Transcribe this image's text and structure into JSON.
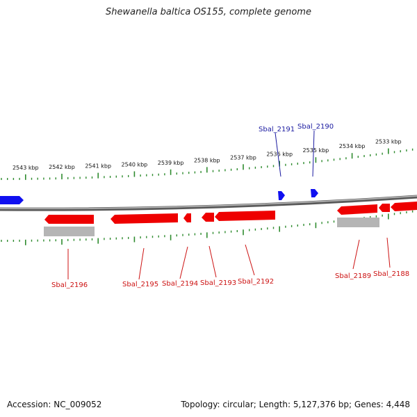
{
  "title": "Shewanella baltica OS155, complete genome",
  "accession_text": "Accession: NC_009052",
  "summary_text": "Topology: circular; Length: 5,127,376 bp; Genes: 4,448",
  "colors": {
    "backbone": "#7a7a7a",
    "tick": "#2e8b2e",
    "forward_gene": "#0000ff",
    "reverse_gene": "#ff0000",
    "gray_feature": "#b8b8b8",
    "forward_label": "#1a1aa0",
    "reverse_label": "#cc1111"
  },
  "scale_labels": [
    {
      "kbp": 2543,
      "text": "2543 kbp"
    },
    {
      "kbp": 2542,
      "text": "2542 kbp"
    },
    {
      "kbp": 2541,
      "text": "2541 kbp"
    },
    {
      "kbp": 2540,
      "text": "2540 kbp"
    },
    {
      "kbp": 2539,
      "text": "2539 kbp"
    },
    {
      "kbp": 2538,
      "text": "2538 kbp"
    },
    {
      "kbp": 2537,
      "text": "2537 kbp"
    },
    {
      "kbp": 2536,
      "text": "2536 kbp"
    },
    {
      "kbp": 2535,
      "text": "2535 kbp"
    },
    {
      "kbp": 2534,
      "text": "2534 kbp"
    },
    {
      "kbp": 2533,
      "text": "2533 kbp"
    }
  ],
  "genes": [
    {
      "name": "Sbal_2191",
      "strand": "forward",
      "labeled": true
    },
    {
      "name": "Sbal_2190",
      "strand": "forward",
      "labeled": true
    },
    {
      "name": "Sbal_2196",
      "strand": "reverse",
      "labeled": true
    },
    {
      "name": "Sbal_2195",
      "strand": "reverse",
      "labeled": true
    },
    {
      "name": "Sbal_2194",
      "strand": "reverse",
      "labeled": true
    },
    {
      "name": "Sbal_2193",
      "strand": "reverse",
      "labeled": true
    },
    {
      "name": "Sbal_2192",
      "strand": "reverse",
      "labeled": true
    },
    {
      "name": "Sbal_2189",
      "strand": "reverse",
      "labeled": true
    },
    {
      "name": "Sbal_2188",
      "strand": "reverse",
      "labeled": true
    }
  ]
}
